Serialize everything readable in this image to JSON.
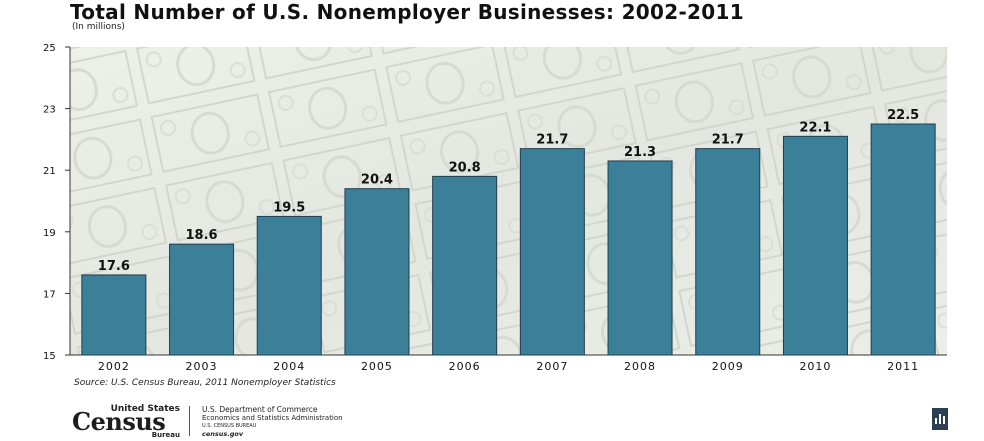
{
  "chart_data": {
    "type": "bar",
    "title": "Total Number of U.S. Nonemployer Businesses: 2002-2011",
    "subtitle": "(In millions)",
    "categories": [
      "2002",
      "2003",
      "2004",
      "2005",
      "2006",
      "2007",
      "2008",
      "2009",
      "2010",
      "2011"
    ],
    "values": [
      17.6,
      18.6,
      19.5,
      20.4,
      20.8,
      21.7,
      21.3,
      21.7,
      22.1,
      22.5
    ],
    "data_labels": [
      "17.6",
      "18.6",
      "19.5",
      "20.4",
      "20.8",
      "21.7",
      "21.3",
      "21.7",
      "22.1",
      "22.5"
    ],
    "ylim": [
      15,
      25
    ],
    "yticks": [
      "15",
      "17",
      "19",
      "21",
      "23",
      "25"
    ],
    "xlabel": "",
    "ylabel": "",
    "bar_color": "#3c7f99",
    "grid": false,
    "legend": "none"
  },
  "source": "Source:  U.S. Census Bureau, 2011 Nonemployer Statistics",
  "footer": {
    "logo_top": "United States",
    "logo_main": "Census",
    "logo_bottom": "Bureau",
    "agency_line1": "U.S. Department of Commerce",
    "agency_line2": "Economics and Statistics Administration",
    "agency_line3": "U.S. CENSUS BUREAU",
    "agency_url": "census.gov",
    "stats_icon": "statistics-icon"
  }
}
